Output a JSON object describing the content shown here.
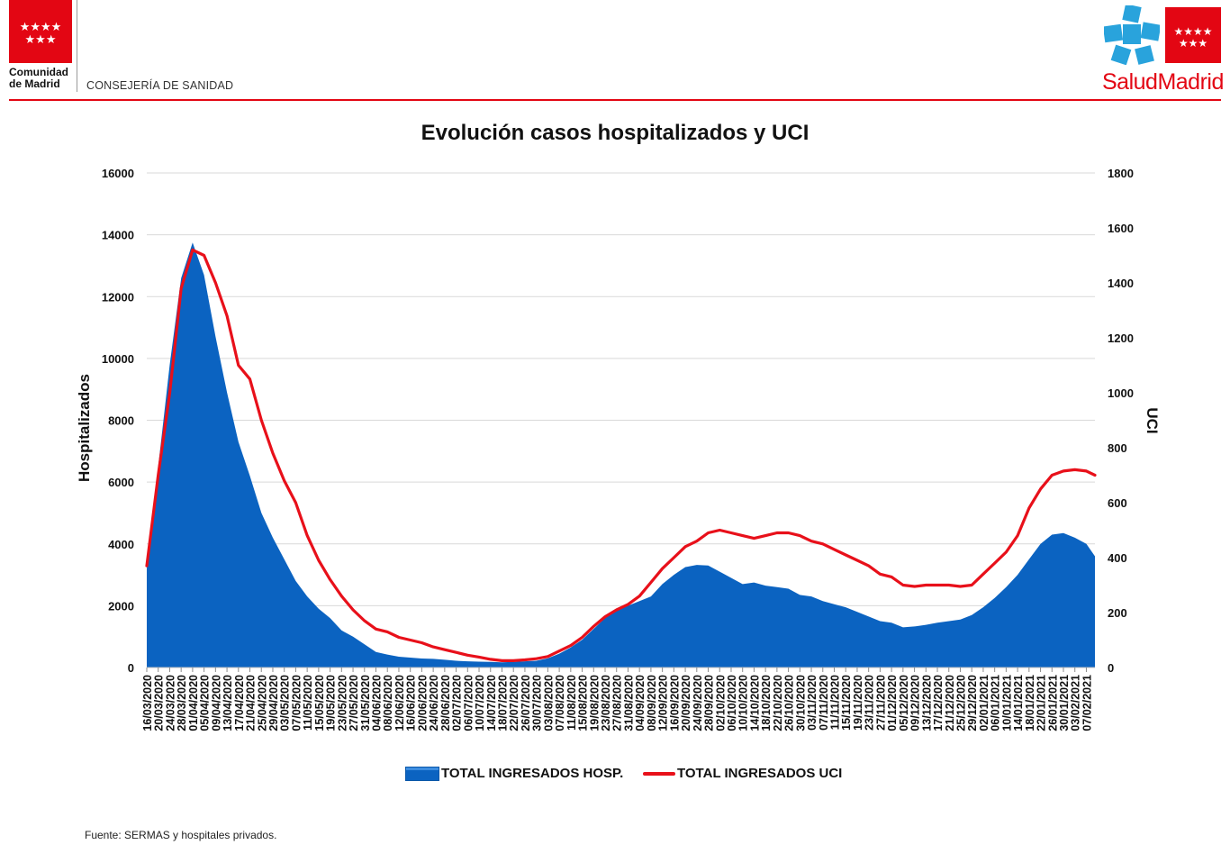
{
  "header": {
    "left_logo_text": "Comunidad de Madrid",
    "left_logo_line1": "Comunidad",
    "left_logo_line2": "de Madrid",
    "department": "CONSEJERÍA DE SANIDAD",
    "right_logo_text": "SaludMadrid"
  },
  "footer": {
    "source": "Fuente: SERMAS y hospitales privados."
  },
  "colors": {
    "hosp_fill": "#0b63c1",
    "uci_line": "#e8101a",
    "brand_red": "#e30613",
    "grid": "#d9d9d9"
  },
  "chart_data": {
    "type": "area",
    "title": "Evolución casos hospitalizados y UCI",
    "ylabel": "Hospitalizados",
    "y2label": "UCI",
    "ylim": [
      0,
      16000
    ],
    "y2lim": [
      0,
      1800
    ],
    "yticks": [
      0,
      2000,
      4000,
      6000,
      8000,
      10000,
      12000,
      14000,
      16000
    ],
    "y2ticks": [
      0,
      200,
      400,
      600,
      800,
      1000,
      1200,
      1400,
      1600,
      1800
    ],
    "x_start": "16/03/2020",
    "x_end": "10/02/2021",
    "grid": true,
    "legend_position": "bottom",
    "x_tick_labels": [
      "16/03/2020",
      "20/03/2020",
      "24/03/2020",
      "28/03/2020",
      "01/04/2020",
      "05/04/2020",
      "09/04/2020",
      "13/04/2020",
      "17/04/2020",
      "21/04/2020",
      "25/04/2020",
      "29/04/2020",
      "03/05/2020",
      "07/05/2020",
      "11/05/2020",
      "15/05/2020",
      "19/05/2020",
      "23/05/2020",
      "27/05/2020",
      "31/05/2020",
      "04/06/2020",
      "08/06/2020",
      "12/06/2020",
      "16/06/2020",
      "20/06/2020",
      "24/06/2020",
      "28/06/2020",
      "02/07/2020",
      "06/07/2020",
      "10/07/2020",
      "14/07/2020",
      "18/07/2020",
      "22/07/2020",
      "26/07/2020",
      "30/07/2020",
      "03/08/2020",
      "07/08/2020",
      "11/08/2020",
      "15/08/2020",
      "19/08/2020",
      "23/08/2020",
      "27/08/2020",
      "31/08/2020",
      "04/09/2020",
      "08/09/2020",
      "12/09/2020",
      "16/09/2020",
      "20/09/2020",
      "24/09/2020",
      "28/09/2020",
      "02/10/2020",
      "06/10/2020",
      "10/10/2020",
      "14/10/2020",
      "18/10/2020",
      "22/10/2020",
      "26/10/2020",
      "30/10/2020",
      "03/11/2020",
      "07/11/2020",
      "11/11/2020",
      "15/11/2020",
      "19/11/2020",
      "23/11/2020",
      "27/11/2020",
      "01/12/2020",
      "05/12/2020",
      "09/12/2020",
      "13/12/2020",
      "17/12/2020",
      "21/12/2020",
      "25/12/2020",
      "29/12/2020",
      "02/01/2021",
      "06/01/2021",
      "10/01/2021",
      "14/01/2021",
      "18/01/2021",
      "22/01/2021",
      "26/01/2021",
      "30/01/2021",
      "03/02/2021",
      "07/02/2021"
    ],
    "series": [
      {
        "name": "TOTAL INGRESADOS HOSP.",
        "axis": "left",
        "points": [
          [
            "16/03/2020",
            3200
          ],
          [
            "20/03/2020",
            6500
          ],
          [
            "24/03/2020",
            9800
          ],
          [
            "28/03/2020",
            12600
          ],
          [
            "01/04/2020",
            13750
          ],
          [
            "05/04/2020",
            12700
          ],
          [
            "09/04/2020",
            10700
          ],
          [
            "13/04/2020",
            8900
          ],
          [
            "17/04/2020",
            7300
          ],
          [
            "21/04/2020",
            6200
          ],
          [
            "25/04/2020",
            5000
          ],
          [
            "29/04/2020",
            4200
          ],
          [
            "03/05/2020",
            3500
          ],
          [
            "07/05/2020",
            2800
          ],
          [
            "11/05/2020",
            2300
          ],
          [
            "15/05/2020",
            1900
          ],
          [
            "19/05/2020",
            1600
          ],
          [
            "23/05/2020",
            1200
          ],
          [
            "27/05/2020",
            1000
          ],
          [
            "31/05/2020",
            750
          ],
          [
            "04/06/2020",
            500
          ],
          [
            "08/06/2020",
            420
          ],
          [
            "12/06/2020",
            350
          ],
          [
            "16/06/2020",
            320
          ],
          [
            "20/06/2020",
            290
          ],
          [
            "24/06/2020",
            280
          ],
          [
            "28/06/2020",
            250
          ],
          [
            "02/07/2020",
            220
          ],
          [
            "06/07/2020",
            200
          ],
          [
            "10/07/2020",
            190
          ],
          [
            "14/07/2020",
            180
          ],
          [
            "18/07/2020",
            170
          ],
          [
            "22/07/2020",
            180
          ],
          [
            "26/07/2020",
            200
          ],
          [
            "30/07/2020",
            220
          ],
          [
            "03/08/2020",
            300
          ],
          [
            "07/08/2020",
            450
          ],
          [
            "11/08/2020",
            650
          ],
          [
            "15/08/2020",
            900
          ],
          [
            "19/08/2020",
            1250
          ],
          [
            "23/08/2020",
            1600
          ],
          [
            "27/08/2020",
            1850
          ],
          [
            "31/08/2020",
            2000
          ],
          [
            "04/09/2020",
            2150
          ],
          [
            "08/09/2020",
            2300
          ],
          [
            "12/09/2020",
            2700
          ],
          [
            "16/09/2020",
            3000
          ],
          [
            "20/09/2020",
            3250
          ],
          [
            "24/09/2020",
            3320
          ],
          [
            "28/09/2020",
            3300
          ],
          [
            "02/10/2020",
            3100
          ],
          [
            "06/10/2020",
            2900
          ],
          [
            "10/10/2020",
            2700
          ],
          [
            "14/10/2020",
            2750
          ],
          [
            "18/10/2020",
            2650
          ],
          [
            "22/10/2020",
            2600
          ],
          [
            "26/10/2020",
            2550
          ],
          [
            "30/10/2020",
            2350
          ],
          [
            "03/11/2020",
            2300
          ],
          [
            "07/11/2020",
            2150
          ],
          [
            "11/11/2020",
            2050
          ],
          [
            "15/11/2020",
            1950
          ],
          [
            "19/11/2020",
            1800
          ],
          [
            "23/11/2020",
            1650
          ],
          [
            "27/11/2020",
            1500
          ],
          [
            "01/12/2020",
            1450
          ],
          [
            "05/12/2020",
            1300
          ],
          [
            "09/12/2020",
            1330
          ],
          [
            "13/12/2020",
            1380
          ],
          [
            "17/12/2020",
            1450
          ],
          [
            "21/12/2020",
            1500
          ],
          [
            "25/12/2020",
            1550
          ],
          [
            "29/12/2020",
            1700
          ],
          [
            "02/01/2021",
            1950
          ],
          [
            "06/01/2021",
            2250
          ],
          [
            "10/01/2021",
            2600
          ],
          [
            "14/01/2021",
            3000
          ],
          [
            "18/01/2021",
            3500
          ],
          [
            "22/01/2021",
            4000
          ],
          [
            "26/01/2021",
            4300
          ],
          [
            "30/01/2021",
            4350
          ],
          [
            "03/02/2021",
            4200
          ],
          [
            "07/02/2021",
            4000
          ],
          [
            "10/02/2021",
            3600
          ]
        ]
      },
      {
        "name": "TOTAL INGRESADOS UCI",
        "axis": "right",
        "points": [
          [
            "16/03/2020",
            370
          ],
          [
            "20/03/2020",
            700
          ],
          [
            "24/03/2020",
            1000
          ],
          [
            "28/03/2020",
            1380
          ],
          [
            "01/04/2020",
            1520
          ],
          [
            "05/04/2020",
            1500
          ],
          [
            "09/04/2020",
            1400
          ],
          [
            "13/04/2020",
            1280
          ],
          [
            "17/04/2020",
            1100
          ],
          [
            "21/04/2020",
            1050
          ],
          [
            "25/04/2020",
            900
          ],
          [
            "29/04/2020",
            780
          ],
          [
            "03/05/2020",
            680
          ],
          [
            "07/05/2020",
            600
          ],
          [
            "11/05/2020",
            480
          ],
          [
            "15/05/2020",
            390
          ],
          [
            "19/05/2020",
            320
          ],
          [
            "23/05/2020",
            260
          ],
          [
            "27/05/2020",
            210
          ],
          [
            "31/05/2020",
            170
          ],
          [
            "04/06/2020",
            140
          ],
          [
            "08/06/2020",
            130
          ],
          [
            "12/06/2020",
            110
          ],
          [
            "16/06/2020",
            100
          ],
          [
            "20/06/2020",
            90
          ],
          [
            "24/06/2020",
            75
          ],
          [
            "28/06/2020",
            65
          ],
          [
            "02/07/2020",
            55
          ],
          [
            "06/07/2020",
            45
          ],
          [
            "10/07/2020",
            38
          ],
          [
            "14/07/2020",
            30
          ],
          [
            "18/07/2020",
            25
          ],
          [
            "22/07/2020",
            25
          ],
          [
            "26/07/2020",
            28
          ],
          [
            "30/07/2020",
            32
          ],
          [
            "03/08/2020",
            40
          ],
          [
            "07/08/2020",
            60
          ],
          [
            "11/08/2020",
            80
          ],
          [
            "15/08/2020",
            110
          ],
          [
            "19/08/2020",
            150
          ],
          [
            "23/08/2020",
            185
          ],
          [
            "27/08/2020",
            210
          ],
          [
            "31/08/2020",
            230
          ],
          [
            "04/09/2020",
            260
          ],
          [
            "08/09/2020",
            310
          ],
          [
            "12/09/2020",
            360
          ],
          [
            "16/09/2020",
            400
          ],
          [
            "20/09/2020",
            440
          ],
          [
            "24/09/2020",
            460
          ],
          [
            "28/09/2020",
            490
          ],
          [
            "02/10/2020",
            500
          ],
          [
            "06/10/2020",
            490
          ],
          [
            "10/10/2020",
            480
          ],
          [
            "14/10/2020",
            470
          ],
          [
            "18/10/2020",
            480
          ],
          [
            "22/10/2020",
            490
          ],
          [
            "26/10/2020",
            490
          ],
          [
            "30/10/2020",
            480
          ],
          [
            "03/11/2020",
            460
          ],
          [
            "07/11/2020",
            450
          ],
          [
            "11/11/2020",
            430
          ],
          [
            "15/11/2020",
            410
          ],
          [
            "19/11/2020",
            390
          ],
          [
            "23/11/2020",
            370
          ],
          [
            "27/11/2020",
            340
          ],
          [
            "01/12/2020",
            330
          ],
          [
            "05/12/2020",
            300
          ],
          [
            "09/12/2020",
            295
          ],
          [
            "13/12/2020",
            300
          ],
          [
            "17/12/2020",
            300
          ],
          [
            "21/12/2020",
            300
          ],
          [
            "25/12/2020",
            295
          ],
          [
            "29/12/2020",
            300
          ],
          [
            "02/01/2021",
            340
          ],
          [
            "06/01/2021",
            380
          ],
          [
            "10/01/2021",
            420
          ],
          [
            "14/01/2021",
            480
          ],
          [
            "18/01/2021",
            580
          ],
          [
            "22/01/2021",
            650
          ],
          [
            "26/01/2021",
            700
          ],
          [
            "30/01/2021",
            715
          ],
          [
            "03/02/2021",
            720
          ],
          [
            "07/02/2021",
            715
          ],
          [
            "10/02/2021",
            700
          ]
        ]
      }
    ]
  }
}
